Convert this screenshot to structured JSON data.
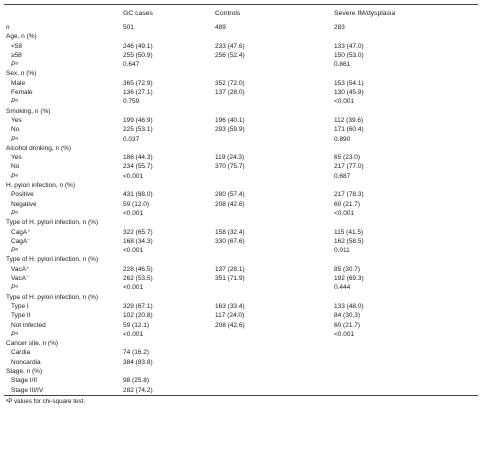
{
  "header": {
    "col1": "GC cases",
    "col2": "Controls",
    "col3": "Severe IM/dysplasia"
  },
  "rows": [
    {
      "label": "n",
      "indent": 0,
      "italic": true,
      "v": [
        "501",
        "489",
        "283"
      ]
    },
    {
      "label": "Age, n (%)",
      "indent": 0,
      "italic": false,
      "v": [
        "",
        "",
        ""
      ]
    },
    {
      "label": "<58",
      "indent": 1,
      "italic": false,
      "v": [
        "246 (49.1)",
        "233 (47.6)",
        "133 (47.0)"
      ]
    },
    {
      "label": "≥58",
      "indent": 1,
      "italic": false,
      "v": [
        "255 (50.9)",
        "256 (52.4)",
        "150 (53.0)"
      ]
    },
    {
      "label": "Pᵃ",
      "indent": 1,
      "italic": true,
      "v": [
        "0.647",
        "",
        "0.861"
      ]
    },
    {
      "label": "Sex, n (%)",
      "indent": 0,
      "italic": false,
      "v": [
        "",
        "",
        ""
      ]
    },
    {
      "label": "Male",
      "indent": 1,
      "italic": false,
      "v": [
        "365 (72.9)",
        "352 (72.0)",
        "153 (54.1)"
      ]
    },
    {
      "label": "Female",
      "indent": 1,
      "italic": false,
      "v": [
        "136 (27.1)",
        "137 (28.0)",
        "130 (45.9)"
      ]
    },
    {
      "label": "Pᵃ",
      "indent": 1,
      "italic": true,
      "v": [
        "0.759",
        "",
        "<0.001"
      ]
    },
    {
      "label": "Smoking, n (%)",
      "indent": 0,
      "italic": false,
      "v": [
        "",
        "",
        ""
      ]
    },
    {
      "label": "Yes",
      "indent": 1,
      "italic": false,
      "v": [
        "199 (46.9)",
        "196 (40.1)",
        "112 (39.6)"
      ]
    },
    {
      "label": "No",
      "indent": 1,
      "italic": false,
      "v": [
        "225 (53.1)",
        "293 (59.9)",
        "171 (60.4)"
      ]
    },
    {
      "label": "Pᵃ",
      "indent": 1,
      "italic": true,
      "v": [
        "0.037",
        "",
        "0.890"
      ]
    },
    {
      "label": "Alcohol drinking, n (%)",
      "indent": 0,
      "italic": false,
      "v": [
        "",
        "",
        ""
      ]
    },
    {
      "label": "Yes",
      "indent": 1,
      "italic": false,
      "v": [
        "186 (44.3)",
        "119 (24.3)",
        "65 (23.0)"
      ]
    },
    {
      "label": "No",
      "indent": 1,
      "italic": false,
      "v": [
        "234 (55.7)",
        "370 (75.7)",
        "217 (77.0)"
      ]
    },
    {
      "label": "Pᵃ",
      "indent": 1,
      "italic": true,
      "v": [
        "<0.001",
        "",
        "0.687"
      ]
    },
    {
      "label": "H. pylori infection, n (%)",
      "indent": 0,
      "italic": false,
      "v": [
        "",
        "",
        ""
      ]
    },
    {
      "label": "Positive",
      "indent": 1,
      "italic": false,
      "v": [
        "431 (88.0)",
        "280 (57.4)",
        "217 (78.3)"
      ]
    },
    {
      "label": "Negative",
      "indent": 1,
      "italic": false,
      "v": [
        "59 (12.0)",
        "208 (42.6)",
        "60 (21.7)"
      ]
    },
    {
      "label": "Pᵃ",
      "indent": 1,
      "italic": true,
      "v": [
        "<0.001",
        "",
        "<0.001"
      ]
    },
    {
      "label": "Type of H. pylori infection, n (%)",
      "indent": 0,
      "italic": false,
      "v": [
        "",
        "",
        ""
      ]
    },
    {
      "label": "CagA⁺",
      "indent": 1,
      "italic": false,
      "v": [
        "322 (65.7)",
        "158 (32.4)",
        "115 (41.5)"
      ]
    },
    {
      "label": "CagA⁻",
      "indent": 1,
      "italic": false,
      "v": [
        "168 (34.3)",
        "330 (67.6)",
        "162 (58.5)"
      ]
    },
    {
      "label": "Pᵃ",
      "indent": 1,
      "italic": true,
      "v": [
        "<0.001",
        "",
        "0.011"
      ]
    },
    {
      "label": "Type of H. pylori infection, n (%)",
      "indent": 0,
      "italic": false,
      "v": [
        "",
        "",
        ""
      ]
    },
    {
      "label": "VacA⁺",
      "indent": 1,
      "italic": false,
      "v": [
        "228 (46.5)",
        "137 (28.1)",
        "85 (30.7)"
      ]
    },
    {
      "label": "VacA⁻",
      "indent": 1,
      "italic": false,
      "v": [
        "262 (53.5)",
        "351 (71.9)",
        "192 (69.3)"
      ]
    },
    {
      "label": "Pᵃ",
      "indent": 1,
      "italic": true,
      "v": [
        "<0.001",
        "",
        "0.444"
      ]
    },
    {
      "label": "Type of H. pylori infection, n (%)",
      "indent": 0,
      "italic": false,
      "v": [
        "",
        "",
        ""
      ]
    },
    {
      "label": "Type I",
      "indent": 1,
      "italic": false,
      "v": [
        "329 (67.1)",
        "163 (33.4)",
        "133 (48.0)"
      ]
    },
    {
      "label": "Type II",
      "indent": 1,
      "italic": false,
      "v": [
        "102 (20.8)",
        "117 (24.0)",
        "84 (30.3)"
      ]
    },
    {
      "label": "Not infected",
      "indent": 1,
      "italic": false,
      "v": [
        "59 (12.1)",
        "208 (42.6)",
        "60 (21.7)"
      ]
    },
    {
      "label": "Pᵃ",
      "indent": 1,
      "italic": true,
      "v": [
        "<0.001",
        "",
        "<0.001"
      ]
    },
    {
      "label": "Cancer site, n (%)",
      "indent": 0,
      "italic": false,
      "v": [
        "",
        "",
        ""
      ]
    },
    {
      "label": "Cardia",
      "indent": 1,
      "italic": false,
      "v": [
        "74 (16.2)",
        "",
        ""
      ]
    },
    {
      "label": "Noncardia",
      "indent": 1,
      "italic": false,
      "v": [
        "384 (83.8)",
        "",
        ""
      ]
    },
    {
      "label": "Stage, n (%)",
      "indent": 0,
      "italic": false,
      "v": [
        "",
        "",
        ""
      ]
    },
    {
      "label": "Stage I/II",
      "indent": 1,
      "italic": false,
      "v": [
        "98 (25.8)",
        "",
        ""
      ]
    },
    {
      "label": "Stage III/IV",
      "indent": 1,
      "italic": false,
      "v": [
        "282 (74.2)",
        "",
        ""
      ]
    }
  ],
  "footnote": "ᵃP values for chi-square test."
}
